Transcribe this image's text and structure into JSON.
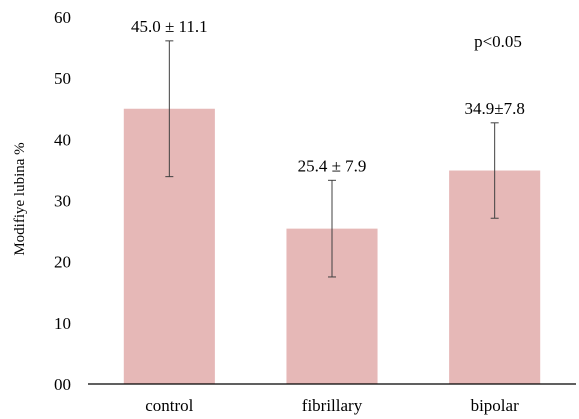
{
  "chart_data": {
    "type": "bar",
    "categories": [
      "control",
      "fibrillary",
      "bipolar"
    ],
    "values": [
      45.0,
      25.4,
      34.9
    ],
    "errors": [
      11.1,
      7.9,
      7.8
    ],
    "value_labels": [
      "45.0  ± 11.1",
      "25.4  ± 7.9",
      "34.9±7.8"
    ],
    "annotation": "p<0.05",
    "title": "",
    "xlabel": "",
    "ylabel": "Modifiye lubina %",
    "ylim": [
      0,
      60
    ],
    "yticks": [
      "00",
      "10",
      "20",
      "30",
      "40",
      "50",
      "60"
    ],
    "grid": false,
    "legend": "none",
    "colors": {
      "bar": "#e6b8b7",
      "axis": "#000000",
      "error_bar": "#404040"
    }
  }
}
